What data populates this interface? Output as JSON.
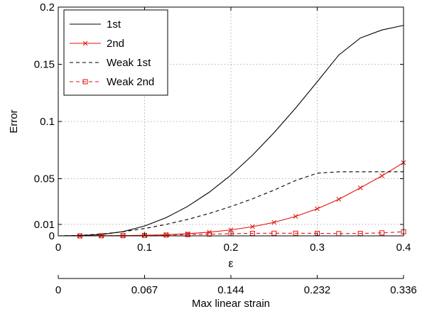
{
  "chart_data": {
    "type": "line",
    "xlabel": "ε",
    "ylabel": "Error",
    "xlim": [
      0,
      0.4
    ],
    "ylim": [
      0,
      0.2
    ],
    "grid": true,
    "legend_position": "top-left",
    "x_ticks": [
      0,
      0.1,
      0.2,
      0.3,
      0.4
    ],
    "x_tick_labels": [
      "0",
      "0.1",
      "0.2",
      "0.3",
      "0.4"
    ],
    "y_ticks": [
      0,
      0.01,
      0.05,
      0.1,
      0.15,
      0.2
    ],
    "y_tick_labels": [
      "0",
      "0.01",
      "0.05",
      "0.1",
      "0.15",
      "0.2"
    ],
    "secondary_x_axis": {
      "label": "Max linear strain",
      "ticks": [
        0,
        0.1,
        0.2,
        0.3,
        0.4
      ],
      "tick_labels": [
        "0",
        "0.067",
        "0.144",
        "0.232",
        "0.336"
      ]
    },
    "x": [
      0.0,
      0.025,
      0.05,
      0.075,
      0.1,
      0.125,
      0.15,
      0.175,
      0.2,
      0.225,
      0.25,
      0.275,
      0.3,
      0.325,
      0.35,
      0.375,
      0.4
    ],
    "series": [
      {
        "name": "1st",
        "color": "#000000",
        "line_style": "solid",
        "marker": "none",
        "values": [
          0.0,
          0.0003,
          0.0012,
          0.0037,
          0.0086,
          0.0159,
          0.0258,
          0.0382,
          0.0531,
          0.0705,
          0.0902,
          0.1117,
          0.1347,
          0.1581,
          0.173,
          0.18,
          0.184
        ]
      },
      {
        "name": "2nd",
        "color": "#e3120b",
        "line_style": "solid",
        "marker": "x",
        "values": [
          0.0,
          0.0,
          0.0001,
          0.0002,
          0.0005,
          0.001,
          0.0019,
          0.0032,
          0.0052,
          0.008,
          0.0118,
          0.017,
          0.0237,
          0.032,
          0.042,
          0.0525,
          0.064
        ]
      },
      {
        "name": "Weak 1st",
        "color": "#000000",
        "line_style": "dashed",
        "marker": "none",
        "values": [
          0.0,
          0.0004,
          0.0016,
          0.0036,
          0.0064,
          0.01,
          0.0144,
          0.0196,
          0.0256,
          0.0324,
          0.04,
          0.0484,
          0.0548,
          0.056,
          0.056,
          0.056,
          0.056
        ]
      },
      {
        "name": "Weak 2nd",
        "color": "#e3120b",
        "line_style": "dashed",
        "marker": "square",
        "values": [
          0.0,
          0.0,
          0.0001,
          0.0002,
          0.0004,
          0.0007,
          0.0011,
          0.0015,
          0.0019,
          0.0022,
          0.0023,
          0.0023,
          0.0022,
          0.002,
          0.0021,
          0.0026,
          0.0036
        ]
      }
    ]
  }
}
